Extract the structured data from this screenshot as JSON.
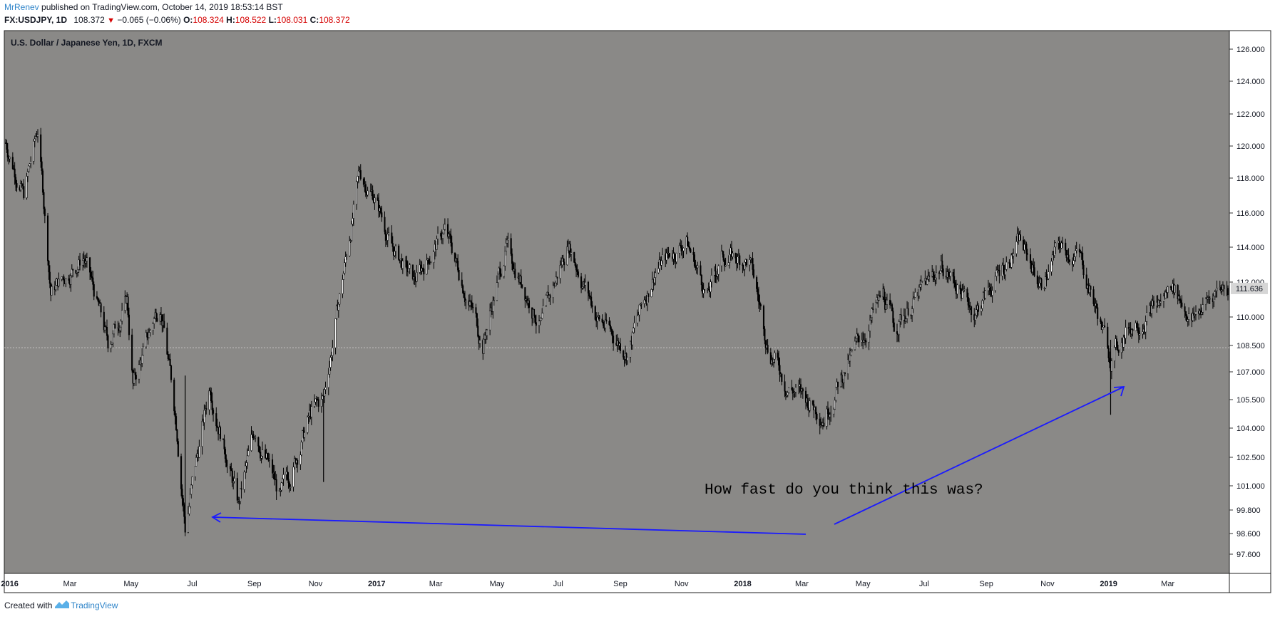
{
  "header": {
    "author": "MrRenev",
    "published_text": "published on TradingView.com, October 14, 2019 18:53:14 BST",
    "symbol": "FX:USDJPY, 1D",
    "last_price": "108.372",
    "change": "−0.065 (−0.06%)",
    "o_label": "O:",
    "o_value": "108.324",
    "h_label": "H:",
    "h_value": "108.522",
    "l_label": "L:",
    "l_value": "108.031",
    "c_label": "C:",
    "c_value": "108.372"
  },
  "footer": {
    "created_with": "Created with",
    "brand": "TradingView"
  },
  "colors": {
    "pane_bg": "#8a8987",
    "candle": "#000000",
    "annotation_arrow": "#1010ff",
    "axis_text": "#131722"
  },
  "chart_data": {
    "type": "candlestick",
    "title": "U.S. Dollar / Japanese Yen, 1D, FXCM",
    "annotation": "How fast do you think this was?",
    "current_price_label": "111.636",
    "price_line": 108.372,
    "y_ticks": [
      "126.000",
      "124.000",
      "122.000",
      "120.000",
      "118.000",
      "116.000",
      "114.000",
      "112.000",
      "110.000",
      "108.500",
      "107.000",
      "105.500",
      "104.000",
      "102.500",
      "101.000",
      "99.800",
      "98.600",
      "97.600"
    ],
    "x_ticks": [
      "2016",
      "Mar",
      "May",
      "Jul",
      "Sep",
      "Nov",
      "2017",
      "Mar",
      "May",
      "Jul",
      "Sep",
      "Nov",
      "2018",
      "Mar",
      "May",
      "Jul",
      "Sep",
      "Nov",
      "2019",
      "Mar"
    ],
    "grid": false,
    "series": [
      {
        "date": "2015-12-28",
        "close": 120.2
      },
      {
        "date": "2016-01-15",
        "close": 117.0
      },
      {
        "date": "2016-01-29",
        "close": 121.0
      },
      {
        "date": "2016-02-11",
        "close": 111.5
      },
      {
        "date": "2016-03-15",
        "close": 113.5
      },
      {
        "date": "2016-04-08",
        "close": 108.5
      },
      {
        "date": "2016-04-27",
        "close": 111.0
      },
      {
        "date": "2016-05-03",
        "close": 106.3
      },
      {
        "date": "2016-05-30",
        "close": 111.0
      },
      {
        "date": "2016-06-16",
        "close": 104.0
      },
      {
        "date": "2016-06-24",
        "close": 99.0
      },
      {
        "date": "2016-07-19",
        "close": 106.3
      },
      {
        "date": "2016-08-16",
        "close": 100.0
      },
      {
        "date": "2016-09-02",
        "close": 104.0
      },
      {
        "date": "2016-09-27",
        "close": 100.3
      },
      {
        "date": "2016-10-28",
        "close": 104.8
      },
      {
        "date": "2016-11-09",
        "close": 105.5
      },
      {
        "date": "2016-12-15",
        "close": 118.2
      },
      {
        "date": "2016-12-30",
        "close": 117.0
      },
      {
        "date": "2017-01-16",
        "close": 114.0
      },
      {
        "date": "2017-02-07",
        "close": 112.0
      },
      {
        "date": "2017-03-10",
        "close": 115.0
      },
      {
        "date": "2017-04-17",
        "close": 108.6
      },
      {
        "date": "2017-05-10",
        "close": 114.0
      },
      {
        "date": "2017-06-14",
        "close": 109.5
      },
      {
        "date": "2017-07-11",
        "close": 114.3
      },
      {
        "date": "2017-08-09",
        "close": 110.0
      },
      {
        "date": "2017-09-08",
        "close": 108.2
      },
      {
        "date": "2017-10-06",
        "close": 112.8
      },
      {
        "date": "2017-11-06",
        "close": 114.4
      },
      {
        "date": "2017-11-27",
        "close": 111.2
      },
      {
        "date": "2017-12-12",
        "close": 113.5
      },
      {
        "date": "2018-01-08",
        "close": 113.2
      },
      {
        "date": "2018-01-26",
        "close": 108.6
      },
      {
        "date": "2018-02-14",
        "close": 106.3
      },
      {
        "date": "2018-03-23",
        "close": 104.8
      },
      {
        "date": "2018-04-12",
        "close": 107.0
      },
      {
        "date": "2018-05-21",
        "close": 111.2
      },
      {
        "date": "2018-06-01",
        "close": 109.5
      },
      {
        "date": "2018-07-19",
        "close": 113.0
      },
      {
        "date": "2018-08-21",
        "close": 110.3
      },
      {
        "date": "2018-10-04",
        "close": 114.4
      },
      {
        "date": "2018-10-26",
        "close": 111.8
      },
      {
        "date": "2018-11-12",
        "close": 114.0
      },
      {
        "date": "2018-12-03",
        "close": 113.5
      },
      {
        "date": "2019-01-03",
        "close": 107.8
      },
      {
        "date": "2019-01-21",
        "close": 109.5
      },
      {
        "date": "2019-02-25",
        "close": 111.0
      },
      {
        "date": "2019-03-05",
        "close": 112.0
      },
      {
        "date": "2019-03-25",
        "close": 109.8
      },
      {
        "date": "2019-04-23",
        "close": 111.9
      },
      {
        "date": "2019-04-30",
        "close": 111.6
      }
    ],
    "spikes": [
      {
        "date": "2016-06-24",
        "high": 106.8,
        "low": 98.8
      },
      {
        "date": "2016-11-09",
        "high": 105.5,
        "low": 101.2
      },
      {
        "date": "2019-01-03",
        "high": 108.8,
        "low": 104.7
      }
    ]
  }
}
